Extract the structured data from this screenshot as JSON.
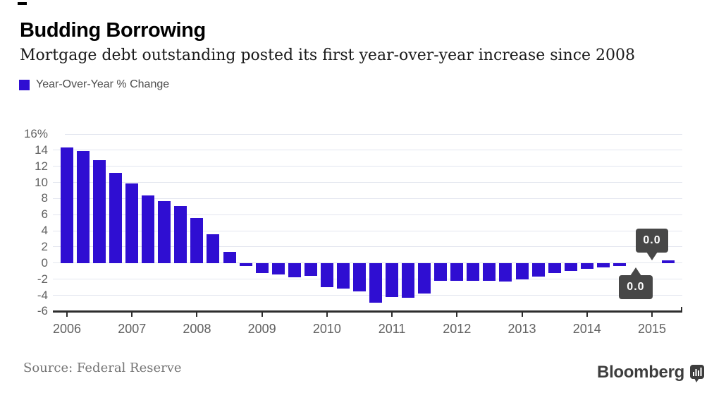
{
  "header": {
    "title": "Budding Borrowing",
    "subtitle": "Mortgage debt outstanding posted its first year-over-year increase since 2008"
  },
  "legend": {
    "label": "Year-Over-Year % Change"
  },
  "chart_data": {
    "type": "bar",
    "title": "Budding Borrowing",
    "series_name": "Year-Over-Year % Change",
    "categories": [
      "2006 Q1",
      "2006 Q2",
      "2006 Q3",
      "2006 Q4",
      "2007 Q1",
      "2007 Q2",
      "2007 Q3",
      "2007 Q4",
      "2008 Q1",
      "2008 Q2",
      "2008 Q3",
      "2008 Q4",
      "2009 Q1",
      "2009 Q2",
      "2009 Q3",
      "2009 Q4",
      "2010 Q1",
      "2010 Q2",
      "2010 Q3",
      "2010 Q4",
      "2011 Q1",
      "2011 Q2",
      "2011 Q3",
      "2011 Q4",
      "2012 Q1",
      "2012 Q2",
      "2012 Q3",
      "2012 Q4",
      "2013 Q1",
      "2013 Q2",
      "2013 Q3",
      "2013 Q4",
      "2014 Q1",
      "2014 Q2",
      "2014 Q3",
      "2014 Q4",
      "2015 Q1",
      "2015 Q2"
    ],
    "values": [
      14.3,
      13.9,
      12.8,
      11.2,
      9.9,
      8.4,
      7.7,
      7.1,
      5.6,
      3.6,
      1.4,
      -0.4,
      -1.2,
      -1.4,
      -1.8,
      -1.6,
      -3.0,
      -3.2,
      -3.5,
      -4.9,
      -4.2,
      -4.3,
      -3.8,
      -2.2,
      -2.2,
      -2.2,
      -2.2,
      -2.3,
      -2.0,
      -1.7,
      -1.2,
      -1.0,
      -0.7,
      -0.5,
      -0.4,
      0.0,
      0.0,
      0.3
    ],
    "ylim": [
      -6,
      16
    ],
    "ytick_step": 2,
    "ytick_labels": [
      "16%",
      "14",
      "12",
      "10",
      "8",
      "6",
      "4",
      "2",
      "0",
      "-2",
      "-4",
      "-6"
    ],
    "xtick_labels": [
      "2006",
      "2007",
      "2008",
      "2009",
      "2010",
      "2011",
      "2012",
      "2013",
      "2014",
      "2015"
    ],
    "grid": true,
    "legend_position": "top-left",
    "bar_color": "#2f0ed2",
    "annotations": [
      {
        "category": "2015 Q1",
        "index": 36,
        "label": "0.0",
        "placement": "above"
      },
      {
        "category": "2014 Q4",
        "index": 35,
        "label": "0.0",
        "placement": "below"
      }
    ]
  },
  "colors": {
    "bar": "#2f0ed2",
    "grid": "#e3e6ef",
    "axis": "#2d2d2d",
    "tick_label": "#616161",
    "tooltip_bg": "#474747",
    "tooltip_text": "#ffffff"
  },
  "footer": {
    "source": "Source: Federal Reserve",
    "brand": "Bloomberg"
  }
}
